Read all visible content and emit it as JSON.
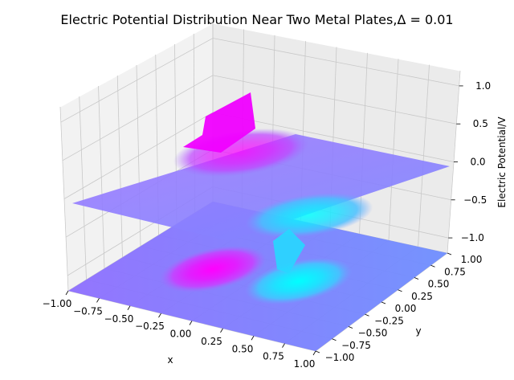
{
  "chart_data": {
    "type": "surface3d",
    "title": "Electric Potential Distribution Near Two Metal Plates,",
    "title_math": "Δ = 0.01",
    "xlabel": "x",
    "ylabel": "y",
    "zlabel": "Electric Potential/V",
    "xlim": [
      -1.0,
      1.0
    ],
    "ylim": [
      -1.0,
      1.0
    ],
    "zlim": [
      -1.2,
      1.2
    ],
    "x_ticks": [
      "−1.00",
      "−0.75",
      "−0.50",
      "−0.25",
      "0.00",
      "0.25",
      "0.50",
      "0.75",
      "1.00"
    ],
    "y_ticks": [
      "−1.00",
      "−0.75",
      "−0.50",
      "−0.25",
      "0.00",
      "0.25",
      "0.50",
      "0.75",
      "1.00"
    ],
    "z_ticks": [
      "−1.0",
      "−0.5",
      "0.0",
      "0.5",
      "1.0"
    ],
    "colormap": "cool",
    "colormap_colors": [
      "#00ffff",
      "#ff00ff"
    ],
    "plates": [
      {
        "potential": 1.0,
        "x": -0.5,
        "y_range": [
          -0.25,
          0.25
        ]
      },
      {
        "potential": -1.0,
        "x": 0.5,
        "y_range": [
          -0.25,
          0.25
        ]
      }
    ],
    "grid": true,
    "contour_floor": true,
    "zmax_surface": 1.0,
    "zmin_surface": -1.0
  }
}
